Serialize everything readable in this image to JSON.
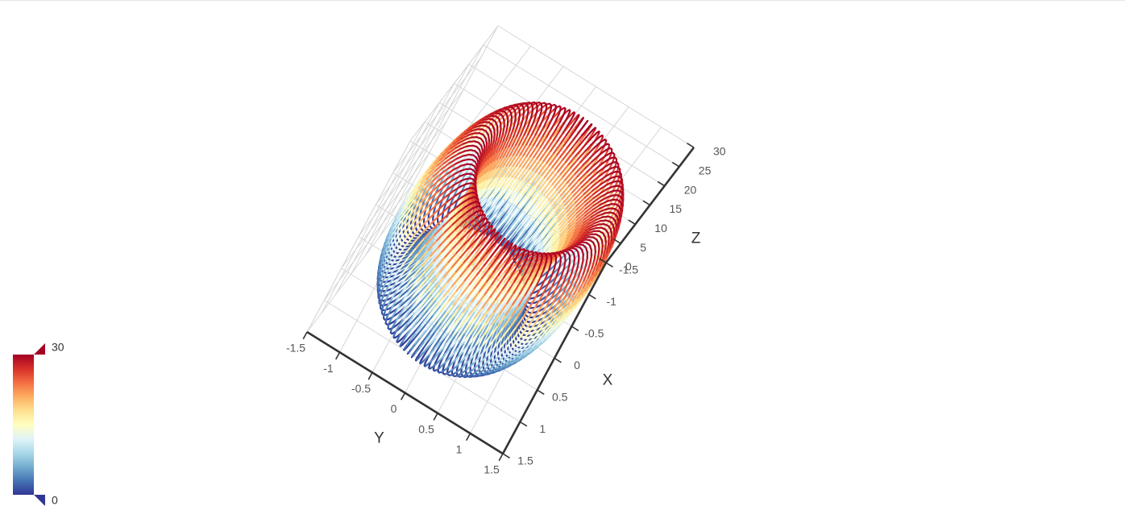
{
  "chart_data": {
    "type": "line3d",
    "title": "",
    "axes": {
      "x": {
        "name": "X",
        "range": [
          -1.5,
          1.5
        ],
        "ticks": [
          "-1.5",
          "-1",
          "-0.5",
          "0",
          "0.5",
          "1",
          "1.5"
        ]
      },
      "y": {
        "name": "Y",
        "range": [
          -1.5,
          1.5
        ],
        "ticks": [
          "-1.5",
          "-1",
          "-0.5",
          "0",
          "0.5",
          "1",
          "1.5"
        ]
      },
      "z": {
        "name": "Z",
        "range": [
          0,
          30
        ],
        "ticks": [
          "0",
          "5",
          "10",
          "15",
          "20",
          "25",
          "30"
        ]
      }
    },
    "grid": true,
    "series": [
      {
        "shape": "toroidal helix",
        "turns": 100,
        "major_radius": 1,
        "minor_radius": 0.3,
        "color_by": "z",
        "z_range": [
          0,
          30
        ]
      }
    ],
    "visual_map": {
      "min": 0,
      "max": 30,
      "min_label": "0",
      "max_label": "30",
      "placement": "left-bottom",
      "colors": [
        "#313695",
        "#4575b4",
        "#74add1",
        "#abd9e9",
        "#e0f3f8",
        "#ffffbf",
        "#fee090",
        "#fdae61",
        "#f46d43",
        "#d73027",
        "#a50026"
      ]
    }
  }
}
